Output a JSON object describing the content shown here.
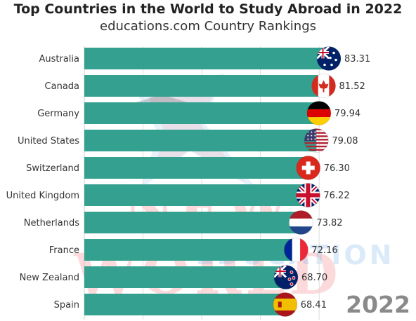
{
  "chart_data": {
    "type": "bar",
    "orientation": "horizontal",
    "title": "Top Countries in the World to Study Abroad in 2022",
    "subtitle": "educations.com Country Rankings",
    "categories": [
      "Australia",
      "Canada",
      "Germany",
      "United States",
      "Switzerland",
      "United Kingdom",
      "Netherlands",
      "France",
      "New Zealand",
      "Spain"
    ],
    "values": [
      83.31,
      81.52,
      79.94,
      79.08,
      76.3,
      76.22,
      73.82,
      72.16,
      68.7,
      68.41
    ],
    "value_labels": [
      "83.31",
      "81.52",
      "79.94",
      "79.08",
      "76.30",
      "76.22",
      "73.82",
      "72.16",
      "68.70",
      "68.41"
    ],
    "flag_icons": [
      "australia-flag-icon",
      "canada-flag-icon",
      "germany-flag-icon",
      "usa-flag-icon",
      "switzerland-flag-icon",
      "uk-flag-icon",
      "netherlands-flag-icon",
      "france-flag-icon",
      "new-zealand-flag-icon",
      "spain-flag-icon"
    ],
    "xlim": [
      0,
      100
    ],
    "bar_color": "#34a08f",
    "grid": true,
    "year": "2022"
  },
  "watermark": {
    "main": "NEW WORLD",
    "sub": "EDUCATION"
  }
}
